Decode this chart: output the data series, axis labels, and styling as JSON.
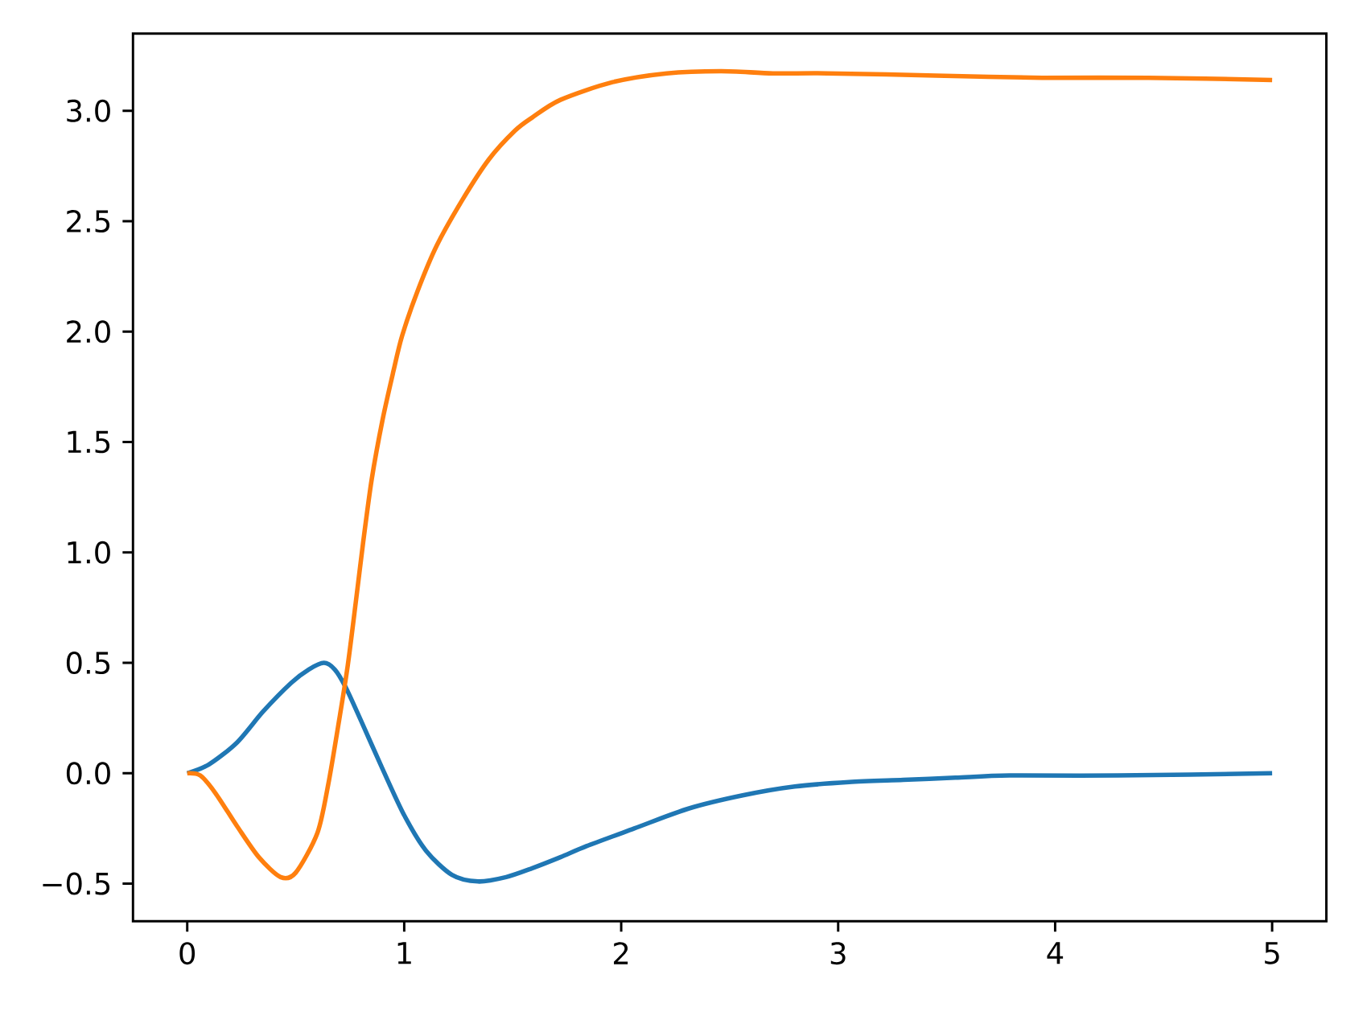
{
  "chart_data": {
    "type": "line",
    "series": [
      {
        "color": "#1f77b4",
        "x": [
          0,
          0.1,
          0.23,
          0.35,
          0.48,
          0.56,
          0.63,
          0.68,
          0.73,
          0.8,
          0.9,
          1.0,
          1.1,
          1.22,
          1.34,
          1.47,
          1.59,
          1.72,
          1.84,
          2.06,
          2.31,
          2.56,
          2.8,
          3.05,
          3.3,
          3.54,
          3.79,
          4.29,
          5.0
        ],
        "values": [
          0,
          0.04,
          0.14,
          0.28,
          0.41,
          0.47,
          0.5,
          0.47,
          0.39,
          0.24,
          0.02,
          -0.19,
          -0.35,
          -0.46,
          -0.49,
          -0.47,
          -0.43,
          -0.38,
          -0.33,
          -0.25,
          -0.16,
          -0.1,
          -0.06,
          -0.04,
          -0.03,
          -0.02,
          -0.01,
          -0.01,
          0
        ]
      },
      {
        "color": "#ff7f0e",
        "x": [
          0,
          0.06,
          0.13,
          0.23,
          0.33,
          0.43,
          0.5,
          0.6,
          0.65,
          0.7,
          0.74,
          0.78,
          0.81,
          0.85,
          0.9,
          0.95,
          0.99,
          1.06,
          1.15,
          1.27,
          1.39,
          1.51,
          1.59,
          1.72,
          1.96,
          2.21,
          2.46,
          2.7,
          2.95,
          3.45,
          3.94,
          4.43,
          5.0
        ],
        "values": [
          0,
          -0.01,
          -0.09,
          -0.24,
          -0.38,
          -0.47,
          -0.45,
          -0.27,
          -0.05,
          0.24,
          0.49,
          0.8,
          1.04,
          1.33,
          1.6,
          1.82,
          1.98,
          2.18,
          2.39,
          2.6,
          2.78,
          2.91,
          2.97,
          3.05,
          3.13,
          3.17,
          3.18,
          3.17,
          3.17,
          3.16,
          3.15,
          3.15,
          3.14
        ]
      }
    ],
    "xlim": [
      -0.25,
      5.25
    ],
    "ylim": [
      -0.67,
      3.35
    ],
    "xticks": [
      0,
      1,
      2,
      3,
      4,
      5
    ],
    "yticks": [
      {
        "value": -0.5,
        "label": "−0.5"
      },
      {
        "value": 0,
        "label": "0.0"
      },
      {
        "value": 0.5,
        "label": "0.5"
      },
      {
        "value": 1,
        "label": "1.0"
      },
      {
        "value": 1.5,
        "label": "1.5"
      },
      {
        "value": 2,
        "label": "2.0"
      },
      {
        "value": 2.5,
        "label": "2.5"
      },
      {
        "value": 3,
        "label": "3.0"
      }
    ],
    "line_style": "solid"
  }
}
